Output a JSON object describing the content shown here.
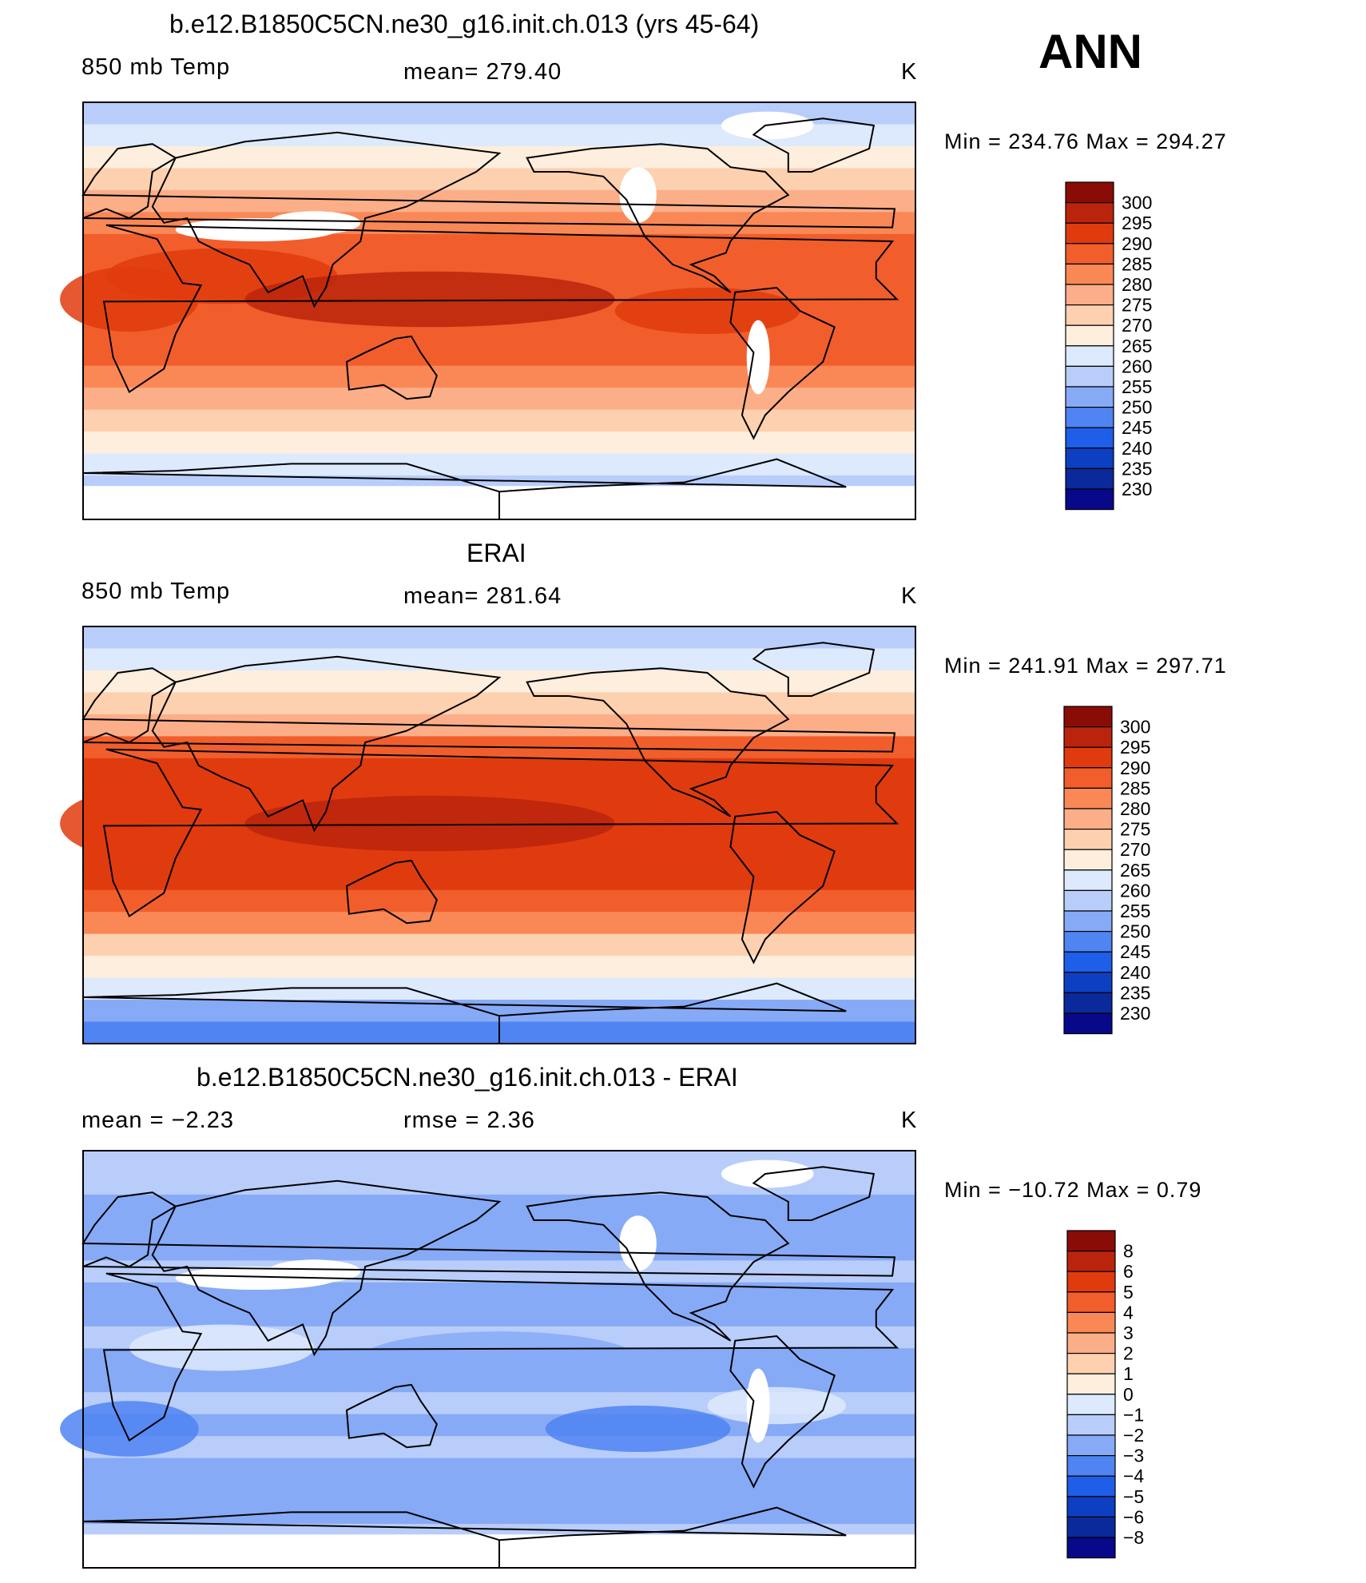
{
  "season": "ANN",
  "colors": {
    "abs_scale": [
      "#08088a",
      "#0a2a9c",
      "#0c3fc2",
      "#1e5ee8",
      "#4f84f2",
      "#86aaf6",
      "#b8cdfa",
      "#dde9fc",
      "#fdeedd",
      "#fdd0b0",
      "#fcae88",
      "#f98856",
      "#f15e2c",
      "#e03b0e",
      "#bb240c",
      "#8a0c06"
    ],
    "land_outline": "#000000",
    "missing": "#ffffff"
  },
  "chart_data": [
    {
      "type": "heatmap",
      "panel": "model",
      "title": "b.e12.B1850C5CN.ne30_g16.init.ch.013 (yrs 45-64)",
      "variable": "850 mb Temp",
      "mean_text": "mean=  279.40",
      "units": "K",
      "min_max_text": "Min  =  234.76  Max  =  294.27",
      "min": 234.76,
      "max": 294.27,
      "mean": 279.4,
      "colorbar_levels": [
        "300",
        "295",
        "290",
        "285",
        "280",
        "275",
        "270",
        "265",
        "260",
        "255",
        "250",
        "245",
        "240",
        "235",
        "230"
      ]
    },
    {
      "type": "heatmap",
      "panel": "obs",
      "title": "ERAI",
      "variable": "850 mb Temp",
      "mean_text": "mean=  281.64",
      "units": "K",
      "min_max_text": "Min  =  241.91  Max  =  297.71",
      "min": 241.91,
      "max": 297.71,
      "mean": 281.64,
      "colorbar_levels": [
        "300",
        "295",
        "290",
        "285",
        "280",
        "275",
        "270",
        "265",
        "260",
        "255",
        "250",
        "245",
        "240",
        "235",
        "230"
      ]
    },
    {
      "type": "heatmap",
      "panel": "difference",
      "title": "b.e12.B1850C5CN.ne30_g16.init.ch.013 - ERAI",
      "mean_text": "mean =    −2.23",
      "rmse_text": "rmse =     2.36",
      "units": "K",
      "min_max_text": "Min  =  −10.72  Max  =     0.79",
      "min": -10.72,
      "max": 0.79,
      "mean": -2.23,
      "rmse": 2.36,
      "colorbar_levels": [
        "8",
        "6",
        "5",
        "4",
        "3",
        "2",
        "1",
        "0",
        "−1",
        "−2",
        "−3",
        "−4",
        "−5",
        "−6",
        "−8"
      ]
    }
  ]
}
